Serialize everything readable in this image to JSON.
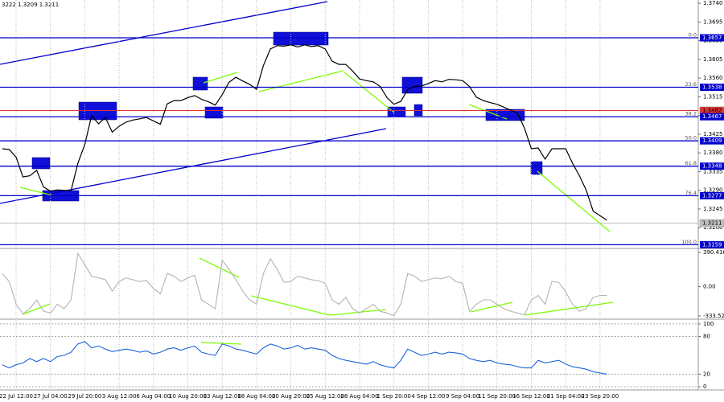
{
  "chart_data": [
    {
      "type": "line",
      "header": "3222 1.3209 1.3211",
      "color": "#000000",
      "values": [
        1.339,
        1.3388,
        1.337,
        1.3322,
        1.3325,
        1.3338,
        1.3298,
        1.3288,
        1.3291,
        1.329,
        1.3289,
        1.3355,
        1.34,
        1.347,
        1.345,
        1.3465,
        1.343,
        1.3444,
        1.3454,
        1.3459,
        1.3462,
        1.3465,
        1.3457,
        1.3449,
        1.3498,
        1.3506,
        1.3506,
        1.3513,
        1.3518,
        1.3509,
        1.3503,
        1.3495,
        1.352,
        1.355,
        1.3562,
        1.3553,
        1.3545,
        1.3533,
        1.359,
        1.363,
        1.3638,
        1.3637,
        1.364,
        1.3635,
        1.364,
        1.3636,
        1.3638,
        1.363,
        1.3601,
        1.3593,
        1.3593,
        1.3577,
        1.3558,
        1.3554,
        1.3551,
        1.354,
        1.3513,
        1.3497,
        1.3504,
        1.3532,
        1.354,
        1.3541,
        1.3547,
        1.3554,
        1.3551,
        1.3557,
        1.3556,
        1.3554,
        1.354,
        1.3514,
        1.3506,
        1.3501,
        1.3497,
        1.349,
        1.3483,
        1.3475,
        1.344,
        1.339,
        1.3392,
        1.3365,
        1.339,
        1.339,
        1.339,
        1.3355,
        1.3325,
        1.329,
        1.324,
        1.3229,
        1.3218
      ],
      "ylim": [
        1.3152,
        1.3748
      ],
      "yticks": [
        {
          "value": 1.374,
          "label": "1.3740"
        },
        1.3695,
        {
          "value": 1.365,
          "label": "1.3650"
        },
        1.3605,
        {
          "value": 1.356,
          "label": "1.3560"
        },
        1.3515,
        {
          "value": 1.347,
          "label": "1.3470"
        },
        1.3425,
        {
          "value": 1.338,
          "label": "1.3380"
        },
        1.3335,
        {
          "value": 1.329,
          "label": "1.3290"
        },
        1.3245,
        {
          "value": 1.32,
          "label": "1.3200"
        }
      ],
      "levels": [
        {
          "value": 1.3657,
          "label": "0.0"
        },
        {
          "value": 1.3538,
          "label": "23.6"
        },
        {
          "value": 1.3467,
          "label": "38.2"
        },
        {
          "value": 1.3409,
          "label": "50.0"
        },
        {
          "value": 1.3348,
          "label": "61.8"
        },
        {
          "value": 1.3277,
          "label": "76.4"
        },
        {
          "value": 1.3159,
          "label": "100.0"
        }
      ],
      "level_color": "#0000cc",
      "price_lines": [
        {
          "value": 1.3482,
          "color": "#e03030"
        },
        {
          "value": 1.3211,
          "color": "#c0c0c0"
        }
      ]
    },
    {
      "type": "line",
      "color": "#b4b4b4",
      "values": [
        150,
        60,
        -200,
        -310,
        -250,
        -150,
        -280,
        -300,
        -200,
        -250,
        -150,
        380,
        250,
        120,
        100,
        80,
        -50,
        60,
        100,
        80,
        60,
        70,
        -20,
        -80,
        150,
        120,
        60,
        100,
        130,
        -150,
        -200,
        -250,
        300,
        200,
        80,
        -50,
        -150,
        -200,
        150,
        320,
        200,
        50,
        60,
        120,
        100,
        80,
        70,
        40,
        -150,
        -200,
        -120,
        -250,
        -300,
        -250,
        -200,
        -280,
        -300,
        -330,
        -200,
        150,
        120,
        60,
        80,
        100,
        90,
        120,
        60,
        40,
        -280,
        -200,
        -150,
        -150,
        -200,
        -250,
        -280,
        -300,
        -320,
        -150,
        -100,
        -200,
        60,
        50,
        -60,
        -200,
        -280,
        -250,
        -120,
        -100,
        -100
      ],
      "ylim": [
        -361,
        427
      ],
      "yticks": [
        390.4163,
        {
          "value": 0,
          "label": "0.00"
        },
        -333.522
      ]
    },
    {
      "type": "line",
      "color": "#1e64dc",
      "values": [
        35,
        30,
        35,
        38,
        45,
        40,
        45,
        40,
        48,
        50,
        55,
        68,
        72,
        62,
        65,
        60,
        56,
        58,
        60,
        58,
        55,
        57,
        52,
        55,
        60,
        62,
        58,
        62,
        65,
        55,
        52,
        50,
        68,
        65,
        60,
        58,
        55,
        52,
        62,
        68,
        65,
        60,
        62,
        66,
        60,
        62,
        60,
        58,
        50,
        45,
        42,
        40,
        38,
        36,
        40,
        35,
        32,
        30,
        42,
        60,
        55,
        50,
        52,
        55,
        52,
        55,
        54,
        52,
        45,
        42,
        40,
        42,
        38,
        36,
        35,
        32,
        30,
        30,
        42,
        38,
        40,
        42,
        36,
        32,
        30,
        28,
        24,
        22,
        20
      ],
      "ylim": [
        -3.75,
        106.25
      ],
      "yticks": [
        100,
        80,
        20,
        0
      ],
      "grid": true,
      "categories": [
        null,
        null,
        "22 Jul 12:00",
        null,
        null,
        null,
        null,
        "27 Jul 04:00",
        null,
        null,
        null,
        null,
        "29 Jul 20:00",
        null,
        null,
        null,
        null,
        "3 Aug 12:00",
        null,
        null,
        null,
        null,
        "6 Aug 04:00",
        null,
        null,
        null,
        null,
        "10 Aug 20:00",
        null,
        null,
        null,
        null,
        "13 Aug 12:00",
        null,
        null,
        null,
        null,
        "18 Aug 04:00",
        null,
        null,
        null,
        null,
        "20 Aug 20:00",
        null,
        null,
        null,
        null,
        "25 Aug 12:00",
        null,
        null,
        null,
        null,
        "28 Aug 04:00",
        null,
        null,
        null,
        null,
        "1 Sep 20:00",
        null,
        null,
        null,
        null,
        "4 Sep 12:00",
        null,
        null,
        null,
        null,
        "9 Sep 04:00",
        null,
        null,
        null,
        null,
        "11 Sep 20:00",
        null,
        null,
        null,
        null,
        "16 Sep 12:00",
        null,
        null,
        null,
        null,
        "21 Sep 04:00",
        null,
        null,
        null,
        null,
        "23 Sep 20:00",
        null
      ]
    }
  ]
}
